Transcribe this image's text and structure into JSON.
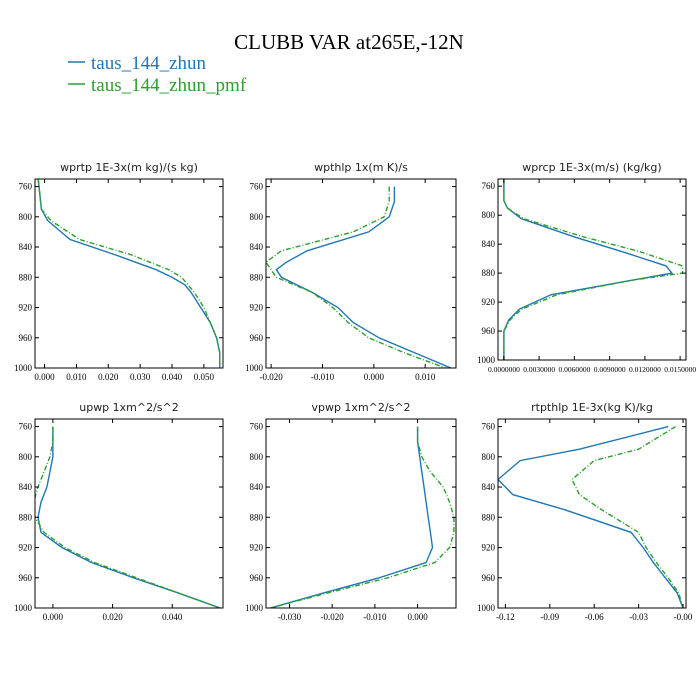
{
  "figure": {
    "title": "CLUBB VAR at265E,-12N",
    "legend": [
      {
        "label": "taus_144_zhun",
        "color": "#1f77b4",
        "dash": false
      },
      {
        "label": "taus_144_zhun_pmf",
        "color": "#2ca02c",
        "dash": true
      }
    ]
  },
  "chart_data": [
    {
      "type": "line",
      "title": "wprtp  1E-3x(m kg)/(s kg)",
      "xlim": [
        -0.003,
        0.056
      ],
      "ylim": [
        1000,
        750
      ],
      "xticks": [
        0.0,
        0.01,
        0.02,
        0.03,
        0.04,
        0.05
      ],
      "xticklabels": [
        "0.000",
        "0.010",
        "0.020",
        "0.030",
        "0.040",
        "0.050"
      ],
      "yticks": [
        760,
        800,
        840,
        880,
        920,
        960,
        1000
      ],
      "y": [
        750,
        790,
        805,
        830,
        850,
        870,
        880,
        890,
        900,
        920,
        940,
        960,
        980,
        1000
      ],
      "series": [
        {
          "name": "taus_144_zhun",
          "values": [
            -0.002,
            -0.001,
            0.001,
            0.008,
            0.022,
            0.035,
            0.04,
            0.044,
            0.046,
            0.049,
            0.052,
            0.054,
            0.055,
            0.055
          ]
        },
        {
          "name": "taus_144_zhun_pmf",
          "values": [
            -0.002,
            -0.001,
            0.002,
            0.011,
            0.027,
            0.039,
            0.043,
            0.045,
            0.047,
            0.05,
            0.052,
            0.054,
            0.055,
            0.055
          ]
        }
      ]
    },
    {
      "type": "line",
      "title": "wpthlp  1x(m K)/s",
      "xlim": [
        -0.021,
        0.016
      ],
      "ylim": [
        1000,
        750
      ],
      "xticks": [
        -0.02,
        -0.01,
        0.0,
        0.01
      ],
      "xticklabels": [
        "-0.020",
        "-0.010",
        "0.000",
        "0.010"
      ],
      "yticks": [
        760,
        800,
        840,
        880,
        920,
        960,
        1000
      ],
      "y": [
        760,
        780,
        800,
        820,
        845,
        860,
        870,
        880,
        900,
        920,
        940,
        960,
        980,
        1000
      ],
      "series": [
        {
          "name": "taus_144_zhun",
          "values": [
            0.004,
            0.004,
            0.003,
            -0.001,
            -0.013,
            -0.017,
            -0.019,
            -0.018,
            -0.012,
            -0.007,
            -0.004,
            0.001,
            0.008,
            0.015
          ]
        },
        {
          "name": "taus_144_zhun_pmf",
          "values": [
            0.003,
            0.003,
            0.002,
            -0.004,
            -0.018,
            -0.021,
            -0.02,
            -0.019,
            -0.012,
            -0.008,
            -0.005,
            -0.001,
            0.006,
            0.014
          ]
        }
      ]
    },
    {
      "type": "line",
      "title": "wprcp  1E-3x(m/s) (kg/kg)",
      "xlim": [
        -0.0005,
        0.0155
      ],
      "ylim": [
        1000,
        750
      ],
      "xticks": [
        0.0,
        0.003,
        0.006,
        0.009,
        0.012,
        0.015
      ],
      "xticklabels": [
        "0.0000000",
        "0.0030000",
        "0.0060000",
        "0.0090000",
        "0.0120000",
        "0.0150000"
      ],
      "yticks": [
        760,
        800,
        840,
        880,
        920,
        960,
        1000
      ],
      "y": [
        750,
        780,
        790,
        805,
        830,
        850,
        870,
        880,
        890,
        910,
        930,
        945,
        960,
        1000
      ],
      "series": [
        {
          "name": "taus_144_zhun",
          "values": [
            0.0,
            0.0,
            0.0003,
            0.0015,
            0.006,
            0.01,
            0.0138,
            0.0143,
            0.0108,
            0.004,
            0.0013,
            0.0004,
            0.0,
            0.0
          ]
        },
        {
          "name": "taus_144_zhun_pmf",
          "values": [
            0.0,
            0.0,
            0.0003,
            0.0017,
            0.0068,
            0.0115,
            0.0152,
            0.0152,
            0.0108,
            0.0045,
            0.0015,
            0.0005,
            0.0,
            0.0
          ]
        }
      ]
    },
    {
      "type": "line",
      "title": "upwp  1xm^2/s^2",
      "xlim": [
        -0.006,
        0.057
      ],
      "ylim": [
        1000,
        750
      ],
      "xticks": [
        0.0,
        0.02,
        0.04
      ],
      "xticklabels": [
        "0.000",
        "0.020",
        "0.040"
      ],
      "yticks": [
        760,
        800,
        840,
        880,
        920,
        960,
        1000
      ],
      "y": [
        760,
        780,
        800,
        820,
        840,
        860,
        880,
        900,
        920,
        940,
        960,
        980,
        1000
      ],
      "series": [
        {
          "name": "taus_144_zhun",
          "values": [
            0.0,
            0.0,
            0.0,
            -0.001,
            -0.002,
            -0.004,
            -0.005,
            -0.004,
            0.003,
            0.013,
            0.027,
            0.042,
            0.056
          ]
        },
        {
          "name": "taus_144_zhun_pmf",
          "values": [
            0.0,
            0.0,
            -0.001,
            -0.003,
            -0.005,
            -0.0065,
            -0.006,
            -0.003,
            0.004,
            0.014,
            0.028,
            0.042,
            0.056
          ]
        }
      ]
    },
    {
      "type": "line",
      "title": "vpwp  1xm^2/s^2",
      "xlim": [
        -0.0355,
        0.009
      ],
      "ylim": [
        1000,
        750
      ],
      "xticks": [
        -0.03,
        -0.02,
        -0.01,
        0.0
      ],
      "xticklabels": [
        "-0.030",
        "-0.020",
        "-0.010",
        "0.000"
      ],
      "yticks": [
        760,
        800,
        840,
        880,
        920,
        960,
        1000
      ],
      "y": [
        760,
        780,
        800,
        820,
        840,
        860,
        880,
        900,
        920,
        940,
        960,
        980,
        1000
      ],
      "series": [
        {
          "name": "taus_144_zhun",
          "values": [
            0.0,
            0.0,
            0.0005,
            0.001,
            0.0015,
            0.002,
            0.0025,
            0.003,
            0.0035,
            0.002,
            -0.009,
            -0.022,
            -0.0345
          ]
        },
        {
          "name": "taus_144_zhun_pmf",
          "values": [
            0.0,
            0.0,
            0.001,
            0.003,
            0.006,
            0.0075,
            0.0085,
            0.0085,
            0.0075,
            0.004,
            -0.007,
            -0.021,
            -0.0345
          ]
        }
      ]
    },
    {
      "type": "line",
      "title": "rtpthlp  1E-3x(kg K)/kg",
      "xlim": [
        -0.125,
        0.002
      ],
      "ylim": [
        1000,
        750
      ],
      "xticks": [
        -0.12,
        -0.09,
        -0.06,
        -0.03,
        0.0
      ],
      "xticklabels": [
        "-0.12",
        "-0.09",
        "-0.06",
        "-0.03",
        "-0.00"
      ],
      "yticks": [
        760,
        800,
        840,
        880,
        920,
        960,
        1000
      ],
      "y": [
        760,
        790,
        805,
        830,
        850,
        870,
        900,
        920,
        940,
        960,
        980,
        1000
      ],
      "series": [
        {
          "name": "taus_144_zhun",
          "values": [
            -0.01,
            -0.07,
            -0.11,
            -0.125,
            -0.115,
            -0.08,
            -0.035,
            -0.027,
            -0.02,
            -0.012,
            -0.004,
            0.0
          ]
        },
        {
          "name": "taus_144_zhun_pmf",
          "values": [
            -0.005,
            -0.03,
            -0.06,
            -0.075,
            -0.07,
            -0.055,
            -0.03,
            -0.025,
            -0.018,
            -0.01,
            -0.003,
            0.0
          ]
        }
      ]
    }
  ]
}
